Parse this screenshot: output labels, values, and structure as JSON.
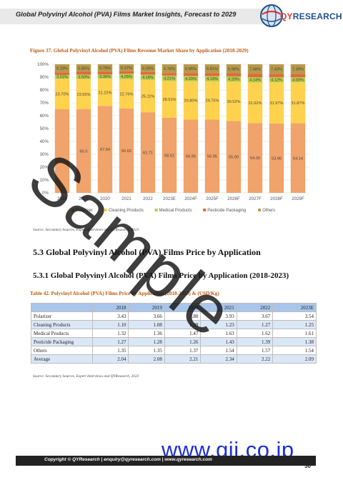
{
  "header": {
    "title": "Global Polyvinyl Alcohol (PVA) Films Market Insights, Forecast to 2029",
    "logo_brand": "QY",
    "logo_rest": "RESEARCH"
  },
  "figure": {
    "caption": "Figure 37.   Global Polyvinyl Alcohol (PVA) Films Revenue Market Share by Application (2018-2029)",
    "source": "Source: Secondary Sources, Expert Interviews and QYResearch, 2023"
  },
  "chart_data": {
    "type": "bar",
    "stacked": true,
    "categories": [
      "2018",
      "2019",
      "2020",
      "2021",
      "2022",
      "2023E",
      "2024F",
      "2025F",
      "2026F",
      "2027F",
      "2028F",
      "2029F"
    ],
    "ylim": [
      0,
      100
    ],
    "yticks": [
      "0%",
      "10%",
      "20%",
      "30%",
      "40%",
      "50%",
      "60%",
      "70%",
      "80%",
      "90%",
      "100%"
    ],
    "legend_position": "bottom",
    "grid": true,
    "series": [
      {
        "name": "Polarizer",
        "color": "#f0a36a",
        "values": [
          65.0,
          65.0,
          67.54,
          65.62,
          62.71,
          58.52,
          56.95,
          56.95,
          55.9,
          54.26,
          53.96,
          54.14
        ],
        "labels": [
          "",
          "65.0",
          "67.54",
          "65.62",
          "62.71",
          "58.52",
          "56.95",
          "56.95",
          "55.90",
          "54.26",
          "53.96",
          "54.14"
        ]
      },
      {
        "name": "Cleaning Products",
        "color": "#ffd24d",
        "values": [
          23.7,
          23.55,
          21.22,
          22.76,
          25.11,
          28.51,
          29.8,
          29.75,
          30.52,
          31.62,
          31.97,
          31.87
        ],
        "labels": [
          "23.70%",
          "23.55%",
          "21.22%",
          "22.76%",
          "25.11%",
          "28.51%",
          "29.80%",
          "29.75%",
          "30.52%",
          "31.62%",
          "31.97%",
          "31.87%"
        ]
      },
      {
        "name": "Medical Products",
        "color": "#b7cc4a",
        "values": [
          3.01,
          3.5,
          3.36,
          4.25,
          4.18,
          4.21,
          4.2,
          4.19,
          4.2,
          4.14,
          4.12,
          4.0
        ],
        "labels": [
          "3.01%",
          "3.50%",
          "3.36%",
          "4.25%",
          "4.18%",
          "4.21%",
          "4.20%",
          "4.19%",
          "4.20%",
          "4.14%",
          "4.12%",
          "4.00%"
        ]
      },
      {
        "name": "Pesticide Packaging",
        "color": "#e2683a",
        "values": [
          2.0,
          2.1,
          2.1,
          2.0,
          2.0,
          2.0,
          2.2,
          2.3,
          2.4,
          2.5,
          2.55,
          2.6
        ],
        "labels": [
          "",
          "",
          "",
          "",
          "",
          "",
          "",
          "",
          "",
          "",
          "",
          ""
        ]
      },
      {
        "name": "Others",
        "color": "#b79a4a",
        "values": [
          6.29,
          5.85,
          5.78,
          5.37,
          6.0,
          6.76,
          6.85,
          6.81,
          6.98,
          7.48,
          7.4,
          7.39
        ],
        "labels": [
          "6.29%",
          "5.85%",
          "5.78%",
          "5.37%",
          "6.00%",
          "6.76%",
          "6.85%",
          "6.81%",
          "6.98%",
          "7.48%",
          "7.40%",
          "7.39%"
        ]
      }
    ]
  },
  "section": {
    "h2": "5.3  Global Polyvinyl Alcohol (PVA) Films Price by Application",
    "h3": "5.3.1  Global Polyvinyl Alcohol (PVA) Films Price by Application (2018-2023)"
  },
  "table": {
    "caption": "Table 42.   Polyvinyl Alcohol (PVA) Films Price by Application (2018-2023) & (USD/Kg)",
    "headers": [
      "",
      "2018",
      "2019",
      "2020",
      "2021",
      "2022",
      "2023E"
    ],
    "rows": [
      [
        "Polarizer",
        "3.43",
        "3.66",
        "3.80",
        "3.93",
        "3.67",
        "3.54"
      ],
      [
        "Cleaning Products",
        "1.10",
        "1.08",
        "1.09",
        "1.23",
        "1.27",
        "1.25"
      ],
      [
        "Medical Products",
        "1.32",
        "1.36",
        "1.47",
        "1.63",
        "1.62",
        "1.61"
      ],
      [
        "Pesticide Packaging",
        "1.27",
        "1.28",
        "1.26",
        "1.43",
        "1.39",
        "1.38"
      ],
      [
        "Others",
        "1.35",
        "1.35",
        "1.37",
        "1.54",
        "1.57",
        "1.54"
      ],
      [
        "Average",
        "2.04",
        "2.08",
        "2.21",
        "2.34",
        "2.22",
        "2.09"
      ]
    ],
    "source": "Source: Secondary Sources, Expert Interviews and QYResearch, 2023"
  },
  "watermark": "Sample",
  "gii": "www.gii.co.jp",
  "footer": {
    "text": "Copyright © QYResearch | enquiry@qyresearch.com | www.qyresearch.com",
    "page": "50"
  }
}
